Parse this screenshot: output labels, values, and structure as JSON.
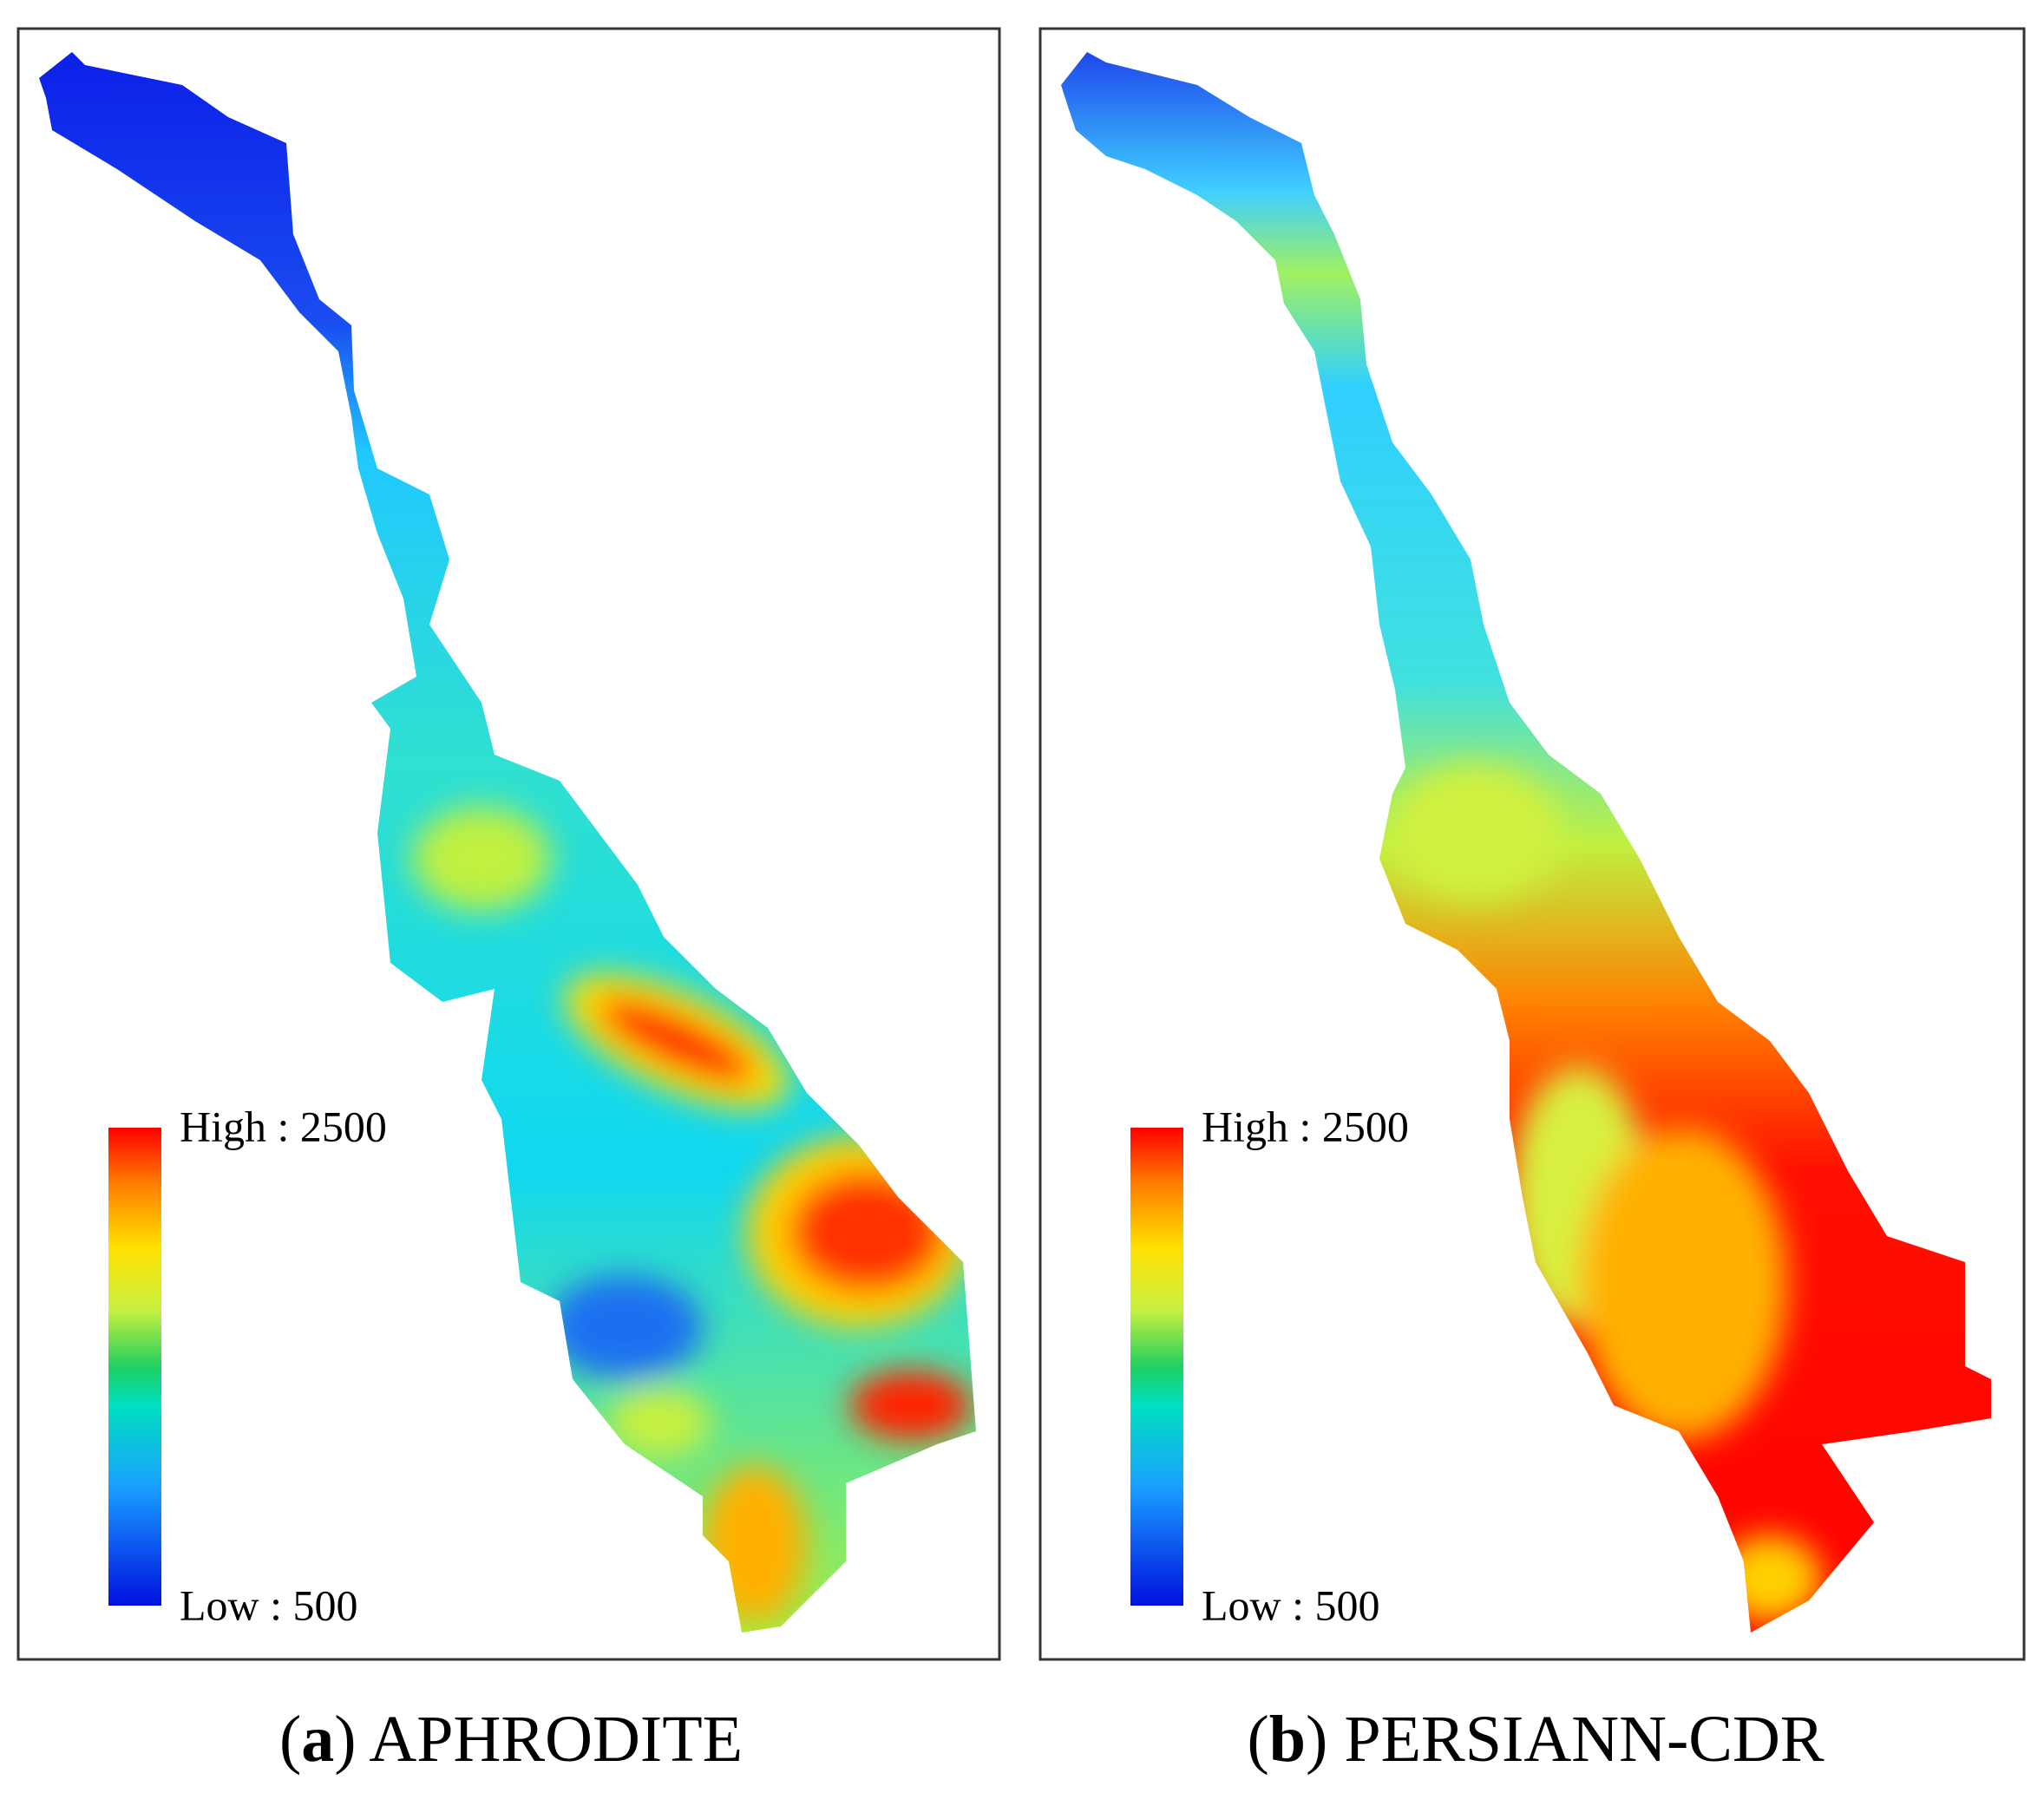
{
  "panels": [
    {
      "legend": {
        "high": "High : 2500",
        "low": "Low : 500"
      },
      "caption": {
        "prefix": "(",
        "letter": "a",
        "suffix": ") APHRODITE"
      }
    },
    {
      "legend": {
        "high": "High : 2500",
        "low": "Low : 500"
      },
      "caption": {
        "prefix": "(",
        "letter": "b",
        "suffix": ") PERSIANN-CDR"
      }
    }
  ]
}
